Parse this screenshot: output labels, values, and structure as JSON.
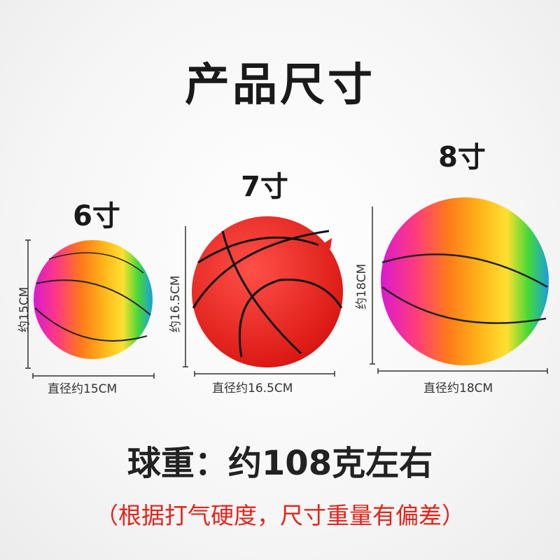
{
  "title": "产品尺寸",
  "balls": [
    {
      "size_label": "6寸",
      "height_label": "约15CM",
      "diameter_label": "直径约15CM",
      "style": "rainbow"
    },
    {
      "size_label": "7寸",
      "height_label": "约16.5CM",
      "diameter_label": "直径约16.5CM",
      "style": "red",
      "color": "#e8231e"
    },
    {
      "size_label": "8寸",
      "height_label": "约18CM",
      "diameter_label": "直径约18CM",
      "style": "rainbow"
    }
  ],
  "weight_text": "球重：约108克左右",
  "note_text": "（根据打气硬度，尺寸重量有偏差）",
  "colors": {
    "note": "#e3241b",
    "rainbow": [
      "#e020c8",
      "#ff3a7a",
      "#ff8a1a",
      "#ffc21a",
      "#4ed83a",
      "#1aa8e0"
    ]
  }
}
